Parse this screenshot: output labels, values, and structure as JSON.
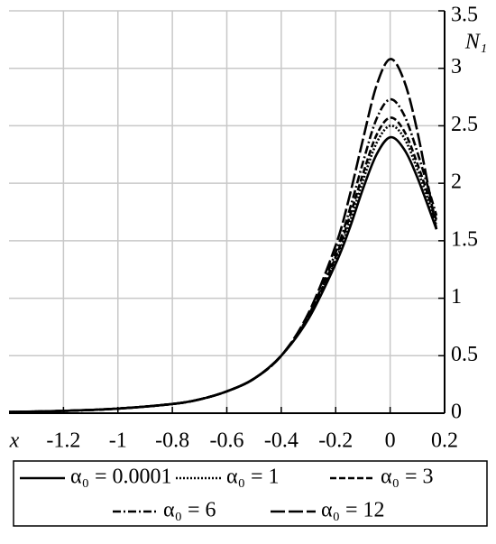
{
  "chart_data": {
    "type": "line",
    "xlabel": "x",
    "ylabel": "N₁",
    "x": [
      -1.4,
      -1.2,
      -1.0,
      -0.8,
      -0.7,
      -0.6,
      -0.5,
      -0.4,
      -0.3,
      -0.2,
      -0.15,
      -0.1,
      -0.05,
      0,
      0.05,
      0.1,
      0.17
    ],
    "series": [
      {
        "name": "α₀ = 0.0001",
        "color": "#000000",
        "dash": "none",
        "values": [
          0.01,
          0.02,
          0.04,
          0.08,
          0.12,
          0.19,
          0.3,
          0.5,
          0.82,
          1.3,
          1.6,
          1.95,
          2.25,
          2.4,
          2.3,
          2.05,
          1.6
        ]
      },
      {
        "name": "α₀ = 1",
        "color": "#000000",
        "dash": "2,2",
        "values": [
          0.01,
          0.02,
          0.04,
          0.08,
          0.12,
          0.19,
          0.3,
          0.5,
          0.83,
          1.33,
          1.65,
          2.02,
          2.35,
          2.5,
          2.4,
          2.12,
          1.65
        ]
      },
      {
        "name": "α₀ = 3",
        "color": "#000000",
        "dash": "7,3",
        "values": [
          0.01,
          0.02,
          0.04,
          0.08,
          0.12,
          0.19,
          0.3,
          0.5,
          0.84,
          1.36,
          1.7,
          2.08,
          2.42,
          2.57,
          2.46,
          2.17,
          1.68
        ]
      },
      {
        "name": "α₀ = 6",
        "color": "#000000",
        "dash": "9,3,2,3",
        "values": [
          0.01,
          0.02,
          0.04,
          0.08,
          0.12,
          0.19,
          0.3,
          0.5,
          0.85,
          1.4,
          1.76,
          2.18,
          2.56,
          2.73,
          2.6,
          2.27,
          1.72
        ]
      },
      {
        "name": "α₀ = 12",
        "color": "#000000",
        "dash": "16,4",
        "values": [
          0.01,
          0.02,
          0.04,
          0.08,
          0.12,
          0.19,
          0.3,
          0.5,
          0.87,
          1.46,
          1.88,
          2.38,
          2.85,
          3.08,
          2.9,
          2.45,
          1.6
        ]
      }
    ],
    "xlim": [
      -1.4,
      0.2
    ],
    "xticks": [
      -1.2,
      -1,
      -0.8,
      -0.6,
      -0.4,
      -0.2,
      0,
      0.2
    ],
    "ylim": [
      0,
      3.5
    ],
    "yticks": [
      0,
      0.5,
      1,
      1.5,
      2,
      2.5,
      3,
      3.5
    ],
    "grid": true,
    "legend": "bottom"
  }
}
